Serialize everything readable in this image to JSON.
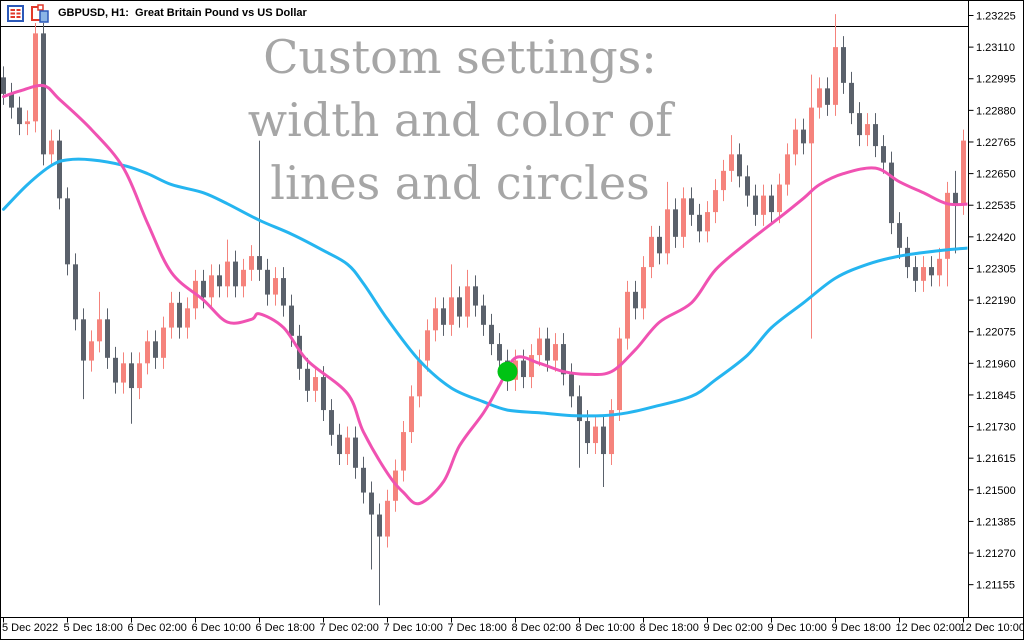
{
  "window": {
    "title": "GBPUSD, H1:  Great Britain Pound vs US Dollar"
  },
  "watermark": {
    "lines": [
      "Custom settings:",
      "width and color of",
      "lines and circles"
    ],
    "color": "#a6a6a6"
  },
  "colors": {
    "background": "#ffffff",
    "frame": "#000000",
    "axis_text": "#000000",
    "bull_candle": "#f5837c",
    "bear_candle": "#5a616b",
    "ma_fast": "#f052b2",
    "ma_slow": "#25b5f0",
    "signal_circle": "#00c314"
  },
  "chart_data": {
    "type": "candlestick",
    "title": "GBPUSD H1 with two moving averages and signal circle",
    "symbol": "GBPUSD",
    "timeframe": "H1",
    "legend_position": "none",
    "grid": false,
    "price_axis": {
      "max_label": 1.23225,
      "step": 0.00115,
      "labels": [
        "1.23225",
        "1.23110",
        "1.22995",
        "1.22880",
        "1.22765",
        "1.22650",
        "1.22535",
        "1.22420",
        "1.22305",
        "1.22190",
        "1.22075",
        "1.21960",
        "1.21845",
        "1.21730",
        "1.21615",
        "1.21500",
        "1.21385",
        "1.21270",
        "1.21155"
      ]
    },
    "time_axis": {
      "bars_per_label": 8,
      "labels": [
        "5 Dec 2022",
        "5 Dec 18:00",
        "6 Dec 02:00",
        "6 Dec 10:00",
        "6 Dec 18:00",
        "7 Dec 02:00",
        "7 Dec 10:00",
        "7 Dec 18:00",
        "8 Dec 02:00",
        "8 Dec 10:00",
        "8 Dec 18:00",
        "9 Dec 02:00",
        "9 Dec 10:00",
        "9 Dec 18:00",
        "12 Dec 02:00",
        "12 Dec 10:00"
      ]
    },
    "candles": {
      "bars_count": 121,
      "first_open": 1.23,
      "default_wick": 0.0004,
      "closes": [
        1.2294,
        1.2289,
        1.2283,
        1.2284,
        1.2316,
        1.2272,
        1.2277,
        1.2256,
        1.2232,
        1.2212,
        1.2197,
        1.2204,
        1.2212,
        1.2198,
        1.2189,
        1.2196,
        1.2187,
        1.2196,
        1.2204,
        1.2198,
        1.2209,
        1.2218,
        1.2209,
        1.2216,
        1.2226,
        1.222,
        1.2228,
        1.2224,
        1.2233,
        1.2224,
        1.223,
        1.2235,
        1.223,
        1.2221,
        1.2227,
        1.2217,
        1.2206,
        1.2194,
        1.2186,
        1.2191,
        1.2179,
        1.217,
        1.2163,
        1.2169,
        1.2158,
        1.2149,
        1.2141,
        1.2133,
        1.2146,
        1.2157,
        1.2171,
        1.2184,
        1.2197,
        1.2208,
        1.2216,
        1.221,
        1.222,
        1.2213,
        1.2224,
        1.2217,
        1.221,
        1.2203,
        1.2197,
        1.219,
        1.2197,
        1.2191,
        1.2199,
        1.2205,
        1.2197,
        1.2203,
        1.2192,
        1.2184,
        1.2175,
        1.2167,
        1.2173,
        1.2163,
        1.2179,
        1.2205,
        1.2222,
        1.2216,
        1.2231,
        1.2242,
        1.2236,
        1.2252,
        1.2242,
        1.2256,
        1.225,
        1.2244,
        1.2251,
        1.2259,
        1.2266,
        1.2272,
        1.2264,
        1.2257,
        1.225,
        1.2257,
        1.2251,
        1.2261,
        1.2272,
        1.2281,
        1.2276,
        1.2289,
        1.2296,
        1.229,
        1.2311,
        1.2298,
        1.2287,
        1.2279,
        1.2283,
        1.2275,
        1.2269,
        1.2247,
        1.2238,
        1.2231,
        1.2226,
        1.2231,
        1.2228,
        1.2234,
        1.2258,
        1.2254,
        1.2277
      ],
      "wick_overrides": {
        "4": {
          "h": 1.232
        },
        "10": {
          "l": 1.2183
        },
        "12": {
          "h": 1.2222
        },
        "16": {
          "l": 1.2174
        },
        "28": {
          "h": 1.2241
        },
        "32": {
          "h": 1.2277
        },
        "46": {
          "l": 1.2121
        },
        "47": {
          "l": 1.2108
        },
        "56": {
          "h": 1.2232
        },
        "58": {
          "h": 1.223
        },
        "72": {
          "l": 1.2158
        },
        "75": {
          "l": 1.2151
        },
        "83": {
          "h": 1.2262
        },
        "91": {
          "h": 1.2279
        },
        "101": {
          "h": 1.2301,
          "l": 1.2205
        },
        "104": {
          "h": 1.2323
        },
        "118": {
          "l": 1.2224
        },
        "119": {
          "h": 1.2266,
          "l": 1.2236
        }
      }
    },
    "series": [
      {
        "name": "fast-ma-pink",
        "color": "#f052b2",
        "width": 3,
        "points": [
          [
            0,
            1.2293
          ],
          [
            2,
            1.2295
          ],
          [
            5,
            1.2297
          ],
          [
            7,
            1.2292
          ],
          [
            11,
            1.2281
          ],
          [
            15,
            1.2267
          ],
          [
            18,
            1.2247
          ],
          [
            21,
            1.2229
          ],
          [
            25,
            1.2219
          ],
          [
            28,
            1.2211
          ],
          [
            31,
            1.2212
          ],
          [
            32,
            1.2214
          ],
          [
            35,
            1.2209
          ],
          [
            38,
            1.2197
          ],
          [
            43,
            1.2185
          ],
          [
            45,
            1.2171
          ],
          [
            48,
            1.2156
          ],
          [
            50,
            1.2149
          ],
          [
            52,
            1.2145
          ],
          [
            55,
            1.2153
          ],
          [
            57,
            1.2166
          ],
          [
            60,
            1.2178
          ],
          [
            62,
            1.2188
          ],
          [
            64,
            1.2198
          ],
          [
            67,
            1.2196
          ],
          [
            70,
            1.2193
          ],
          [
            73,
            1.2192
          ],
          [
            76,
            1.2193
          ],
          [
            79,
            1.2201
          ],
          [
            82,
            1.2211
          ],
          [
            86,
            1.2218
          ],
          [
            89,
            1.223
          ],
          [
            93,
            1.224
          ],
          [
            97,
            1.2249
          ],
          [
            100,
            1.2256
          ],
          [
            102,
            1.2261
          ],
          [
            105,
            1.2265
          ],
          [
            109,
            1.2267
          ],
          [
            112,
            1.2262
          ],
          [
            115,
            1.2258
          ],
          [
            118,
            1.2254
          ],
          [
            121,
            1.2254
          ]
        ]
      },
      {
        "name": "slow-ma-cyan",
        "color": "#25b5f0",
        "width": 3,
        "points": [
          [
            0,
            1.2252
          ],
          [
            3,
            1.2261
          ],
          [
            6,
            1.2268
          ],
          [
            8,
            1.227
          ],
          [
            11,
            1.227
          ],
          [
            15,
            1.2268
          ],
          [
            18,
            1.2265
          ],
          [
            21,
            1.2261
          ],
          [
            25,
            1.2258
          ],
          [
            28,
            1.2254
          ],
          [
            32,
            1.2248
          ],
          [
            36,
            1.2243
          ],
          [
            40,
            1.2237
          ],
          [
            43,
            1.2232
          ],
          [
            45,
            1.2225
          ],
          [
            48,
            1.2212
          ],
          [
            52,
            1.2197
          ],
          [
            56,
            1.2187
          ],
          [
            60,
            1.2182
          ],
          [
            63,
            1.2179
          ],
          [
            67,
            1.2178
          ],
          [
            71,
            1.2177
          ],
          [
            75,
            1.2177
          ],
          [
            78,
            1.2178
          ],
          [
            81,
            1.218
          ],
          [
            86,
            1.2184
          ],
          [
            89,
            1.219
          ],
          [
            93,
            1.2199
          ],
          [
            96,
            1.2209
          ],
          [
            100,
            1.2218
          ],
          [
            104,
            1.2227
          ],
          [
            108,
            1.2232
          ],
          [
            112,
            1.2235
          ],
          [
            117,
            1.2237
          ],
          [
            121,
            1.2238
          ]
        ]
      }
    ],
    "signal_marker": {
      "bar_index": 63,
      "price": 1.2193,
      "radius": 10,
      "color": "#00c314"
    }
  }
}
